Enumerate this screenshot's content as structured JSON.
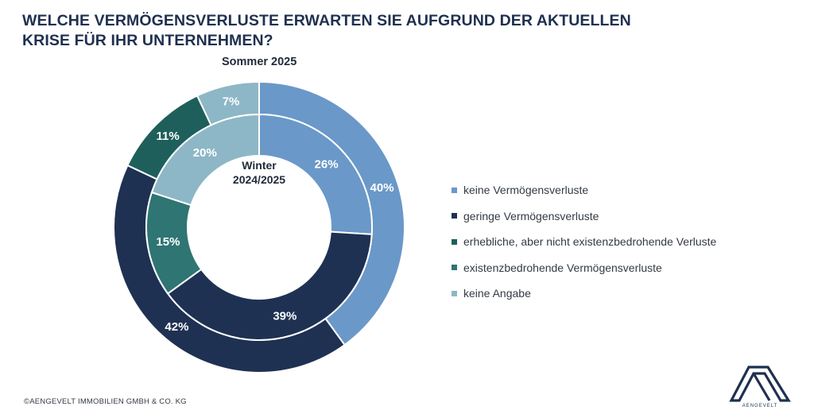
{
  "title_lines": [
    "WELCHE VERMÖGENSVERLUSTE ERWARTEN SIE AUFGRUND DER AKTUELLEN",
    "KRISE FÜR IHR UNTERNEHMEN?"
  ],
  "outer_ring_label": "Sommer 2025",
  "inner_ring_label_line1": "Winter",
  "inner_ring_label_line2": "2024/2025",
  "footer": "©AENGEVELT IMMOBILIEN GMBH & CO. KG",
  "logo_text": "AENGEVELT",
  "chart_data": {
    "type": "pie",
    "title": "WELCHE VERMÖGENSVERLUSTE ERWARTEN SIE AUFGRUND DER AKTUELLEN KRISE FÜR IHR UNTERNEHMEN?",
    "categories": [
      "keine Vermögensverluste",
      "geringe Vermögensverluste",
      "erhebliche, aber nicht existenzbedrohende Verluste",
      "existenzbedrohende Vermögensverluste",
      "keine Angabe"
    ],
    "colors": [
      "#6a98c9",
      "#1f3152",
      "#1e5f5c",
      "#2e7573",
      "#8db7c6"
    ],
    "legend_position": "right",
    "series": [
      {
        "name": "Sommer 2025",
        "ring": "outer",
        "values": [
          40,
          42,
          11,
          0,
          7
        ],
        "labels": [
          "40%",
          "42%",
          "11%",
          "",
          "7%"
        ]
      },
      {
        "name": "Winter 2024/2025",
        "ring": "inner",
        "values": [
          26,
          39,
          0,
          15,
          20
        ],
        "labels": [
          "26%",
          "39%",
          "",
          "15%",
          "20%"
        ]
      }
    ]
  }
}
